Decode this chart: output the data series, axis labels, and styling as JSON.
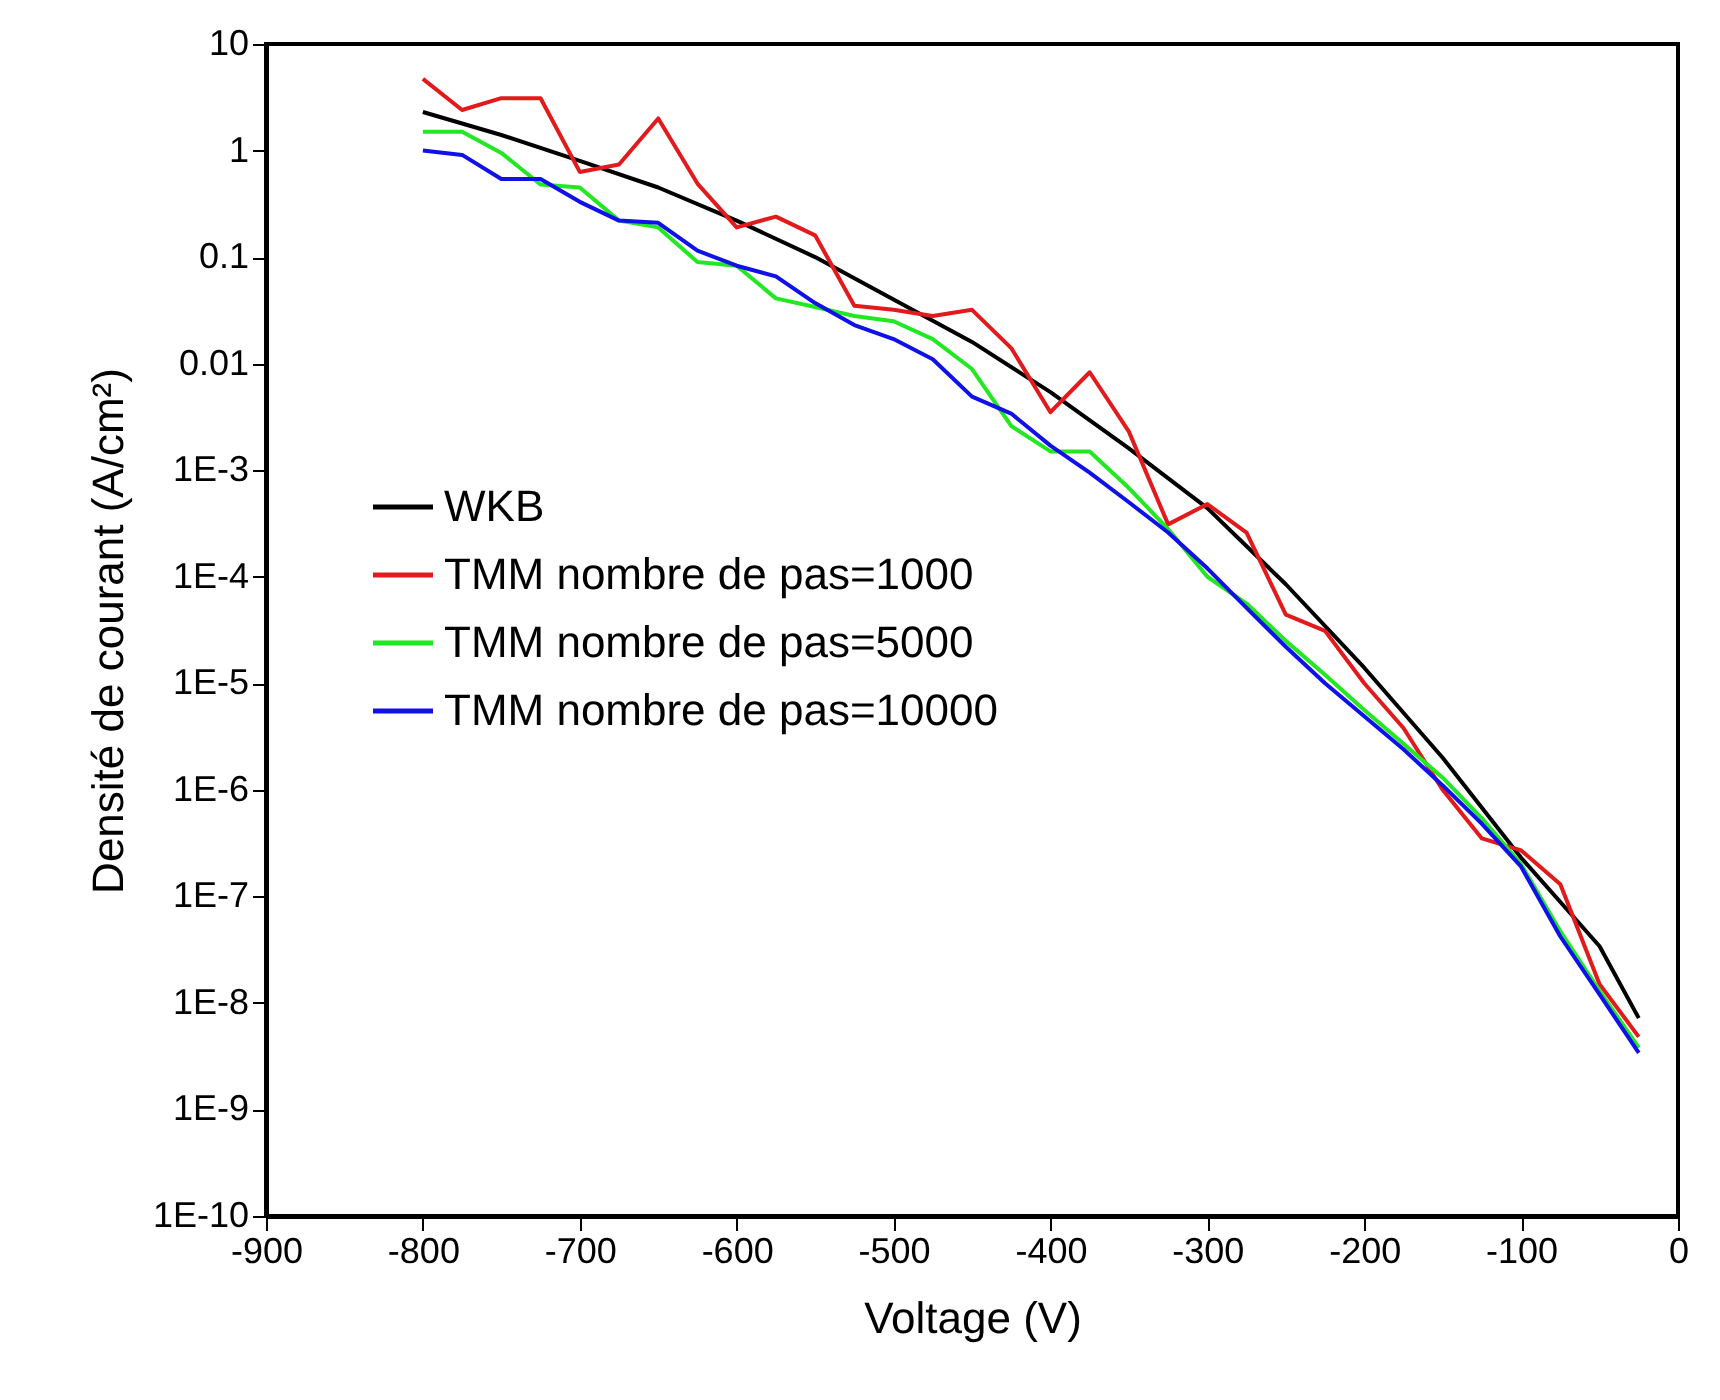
{
  "chart_data": {
    "type": "line",
    "xlabel": "Voltage (V)",
    "ylabel": "Densité de courant (A/cm²)",
    "log": "y",
    "xlim": [
      -900,
      0
    ],
    "xticks": [
      -900,
      -800,
      -700,
      -600,
      -500,
      -400,
      -300,
      -200,
      -100,
      0
    ],
    "ylim": [
      1e-10,
      10
    ],
    "yticks": [
      {
        "value": 1e-10,
        "label": "1E-10"
      },
      {
        "value": 1e-09,
        "label": "1E-9"
      },
      {
        "value": 1e-08,
        "label": "1E-8"
      },
      {
        "value": 1e-07,
        "label": "1E-7"
      },
      {
        "value": 1e-06,
        "label": "1E-6"
      },
      {
        "value": 1e-05,
        "label": "1E-5"
      },
      {
        "value": 0.0001,
        "label": "1E-4"
      },
      {
        "value": 0.001,
        "label": "1E-3"
      },
      0.01,
      0.1,
      1,
      10
    ],
    "grid": false,
    "legend": "left",
    "line_style": "solid",
    "series": [
      {
        "name": "WKB",
        "color": "#000000",
        "x": [
          -800,
          -750,
          -700,
          -650,
          -600,
          -550,
          -500,
          -450,
          -400,
          -350,
          -300,
          -250,
          -200,
          -150,
          -100,
          -50,
          -25
        ],
        "values": [
          2.3,
          1.4,
          0.8,
          0.45,
          0.22,
          0.1,
          0.04,
          0.016,
          0.0054,
          0.0016,
          0.00044,
          8.5e-05,
          1.4e-05,
          2e-06,
          2.3e-07,
          3.4e-08,
          7.2e-09
        ]
      },
      {
        "name": "TMM nombre de pas=1000",
        "color": "#e31a1c",
        "x": [
          -800,
          -775,
          -750,
          -725,
          -700,
          -675,
          -650,
          -625,
          -600,
          -575,
          -550,
          -525,
          -500,
          -475,
          -450,
          -425,
          -400,
          -375,
          -350,
          -325,
          -300,
          -275,
          -250,
          -225,
          -200,
          -175,
          -150,
          -125,
          -100,
          -75,
          -50,
          -25
        ],
        "values": [
          4.7,
          2.4,
          3.1,
          3.1,
          0.63,
          0.74,
          2.0,
          0.49,
          0.19,
          0.24,
          0.16,
          0.035,
          0.032,
          0.028,
          0.032,
          0.014,
          0.0035,
          0.0083,
          0.0023,
          0.00031,
          0.00048,
          0.00026,
          4.4e-05,
          3.1e-05,
          1e-05,
          3.8e-06,
          1e-06,
          3.5e-07,
          2.7e-07,
          1.3e-07,
          1.5e-08,
          4.8e-09
        ]
      },
      {
        "name": "TMM nombre de pas=5000",
        "color": "#22e822",
        "x": [
          -800,
          -775,
          -750,
          -725,
          -700,
          -675,
          -650,
          -625,
          -600,
          -575,
          -550,
          -525,
          -500,
          -475,
          -450,
          -425,
          -400,
          -375,
          -350,
          -325,
          -300,
          -275,
          -250,
          -225,
          -200,
          -175,
          -150,
          -125,
          -100,
          -75,
          -50,
          -25
        ],
        "values": [
          1.5,
          1.5,
          0.95,
          0.48,
          0.45,
          0.22,
          0.19,
          0.09,
          0.083,
          0.041,
          0.034,
          0.028,
          0.025,
          0.017,
          0.0089,
          0.0026,
          0.0015,
          0.0015,
          0.00068,
          0.00028,
          0.0001,
          5.6e-05,
          2.5e-05,
          1.2e-05,
          5.6e-06,
          2.7e-06,
          1.3e-06,
          5.4e-07,
          2e-07,
          4.7e-08,
          1.3e-08,
          3.8e-09
        ]
      },
      {
        "name": "TMM nombre de pas=10000",
        "color": "#1010e8",
        "x": [
          -800,
          -775,
          -750,
          -725,
          -700,
          -675,
          -650,
          -625,
          -600,
          -575,
          -550,
          -525,
          -500,
          -475,
          -450,
          -425,
          -400,
          -375,
          -350,
          -325,
          -300,
          -275,
          -250,
          -225,
          -200,
          -175,
          -150,
          -125,
          -100,
          -75,
          -50,
          -25
        ],
        "values": [
          1.0,
          0.91,
          0.54,
          0.54,
          0.33,
          0.22,
          0.21,
          0.115,
          0.083,
          0.066,
          0.037,
          0.023,
          0.017,
          0.011,
          0.0049,
          0.0034,
          0.0017,
          0.00095,
          0.0005,
          0.00026,
          0.00012,
          5.1e-05,
          2.2e-05,
          1e-05,
          4.9e-06,
          2.4e-06,
          1.1e-06,
          4.8e-07,
          1.9e-07,
          4.2e-08,
          1.2e-08,
          3.4e-09
        ]
      }
    ]
  }
}
